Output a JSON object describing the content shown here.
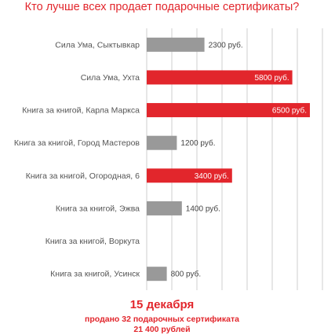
{
  "chart_data": {
    "type": "bar",
    "orientation": "horizontal",
    "title": "Кто лучше всех продает подарочные сертификаты?",
    "categories": [
      "Сила Ума, Сыктывкар",
      "Сила Ума, Ухта",
      "Книга за книгой, Карла Маркса",
      "Книга за книгой, Город Мастеров",
      "Книга за книгой, Огородная, 6",
      "Книга за книгой, Эжва",
      "Книга за книгой, Воркута",
      "Книга за книгой, Усинск"
    ],
    "values": [
      2300,
      5800,
      6500,
      1200,
      3400,
      1400,
      0,
      800
    ],
    "value_labels": [
      "2300 руб.",
      "5800 руб.",
      "6500 руб.",
      "1200 руб.",
      "3400 руб.",
      "1400 руб.",
      "",
      "800 руб."
    ],
    "highlight": [
      false,
      true,
      true,
      false,
      true,
      false,
      false,
      false
    ],
    "xlim": [
      0,
      7000
    ],
    "grid": true,
    "colors": {
      "highlight": "#e2262c",
      "normal": "#999999",
      "grid": "#cfcfcf",
      "category_text": "#555555",
      "label_text": "#444444"
    }
  },
  "footer": {
    "date": "15 декабря",
    "line1": "продано 32 подарочных сертификата",
    "line2": "21 400 рублей"
  }
}
